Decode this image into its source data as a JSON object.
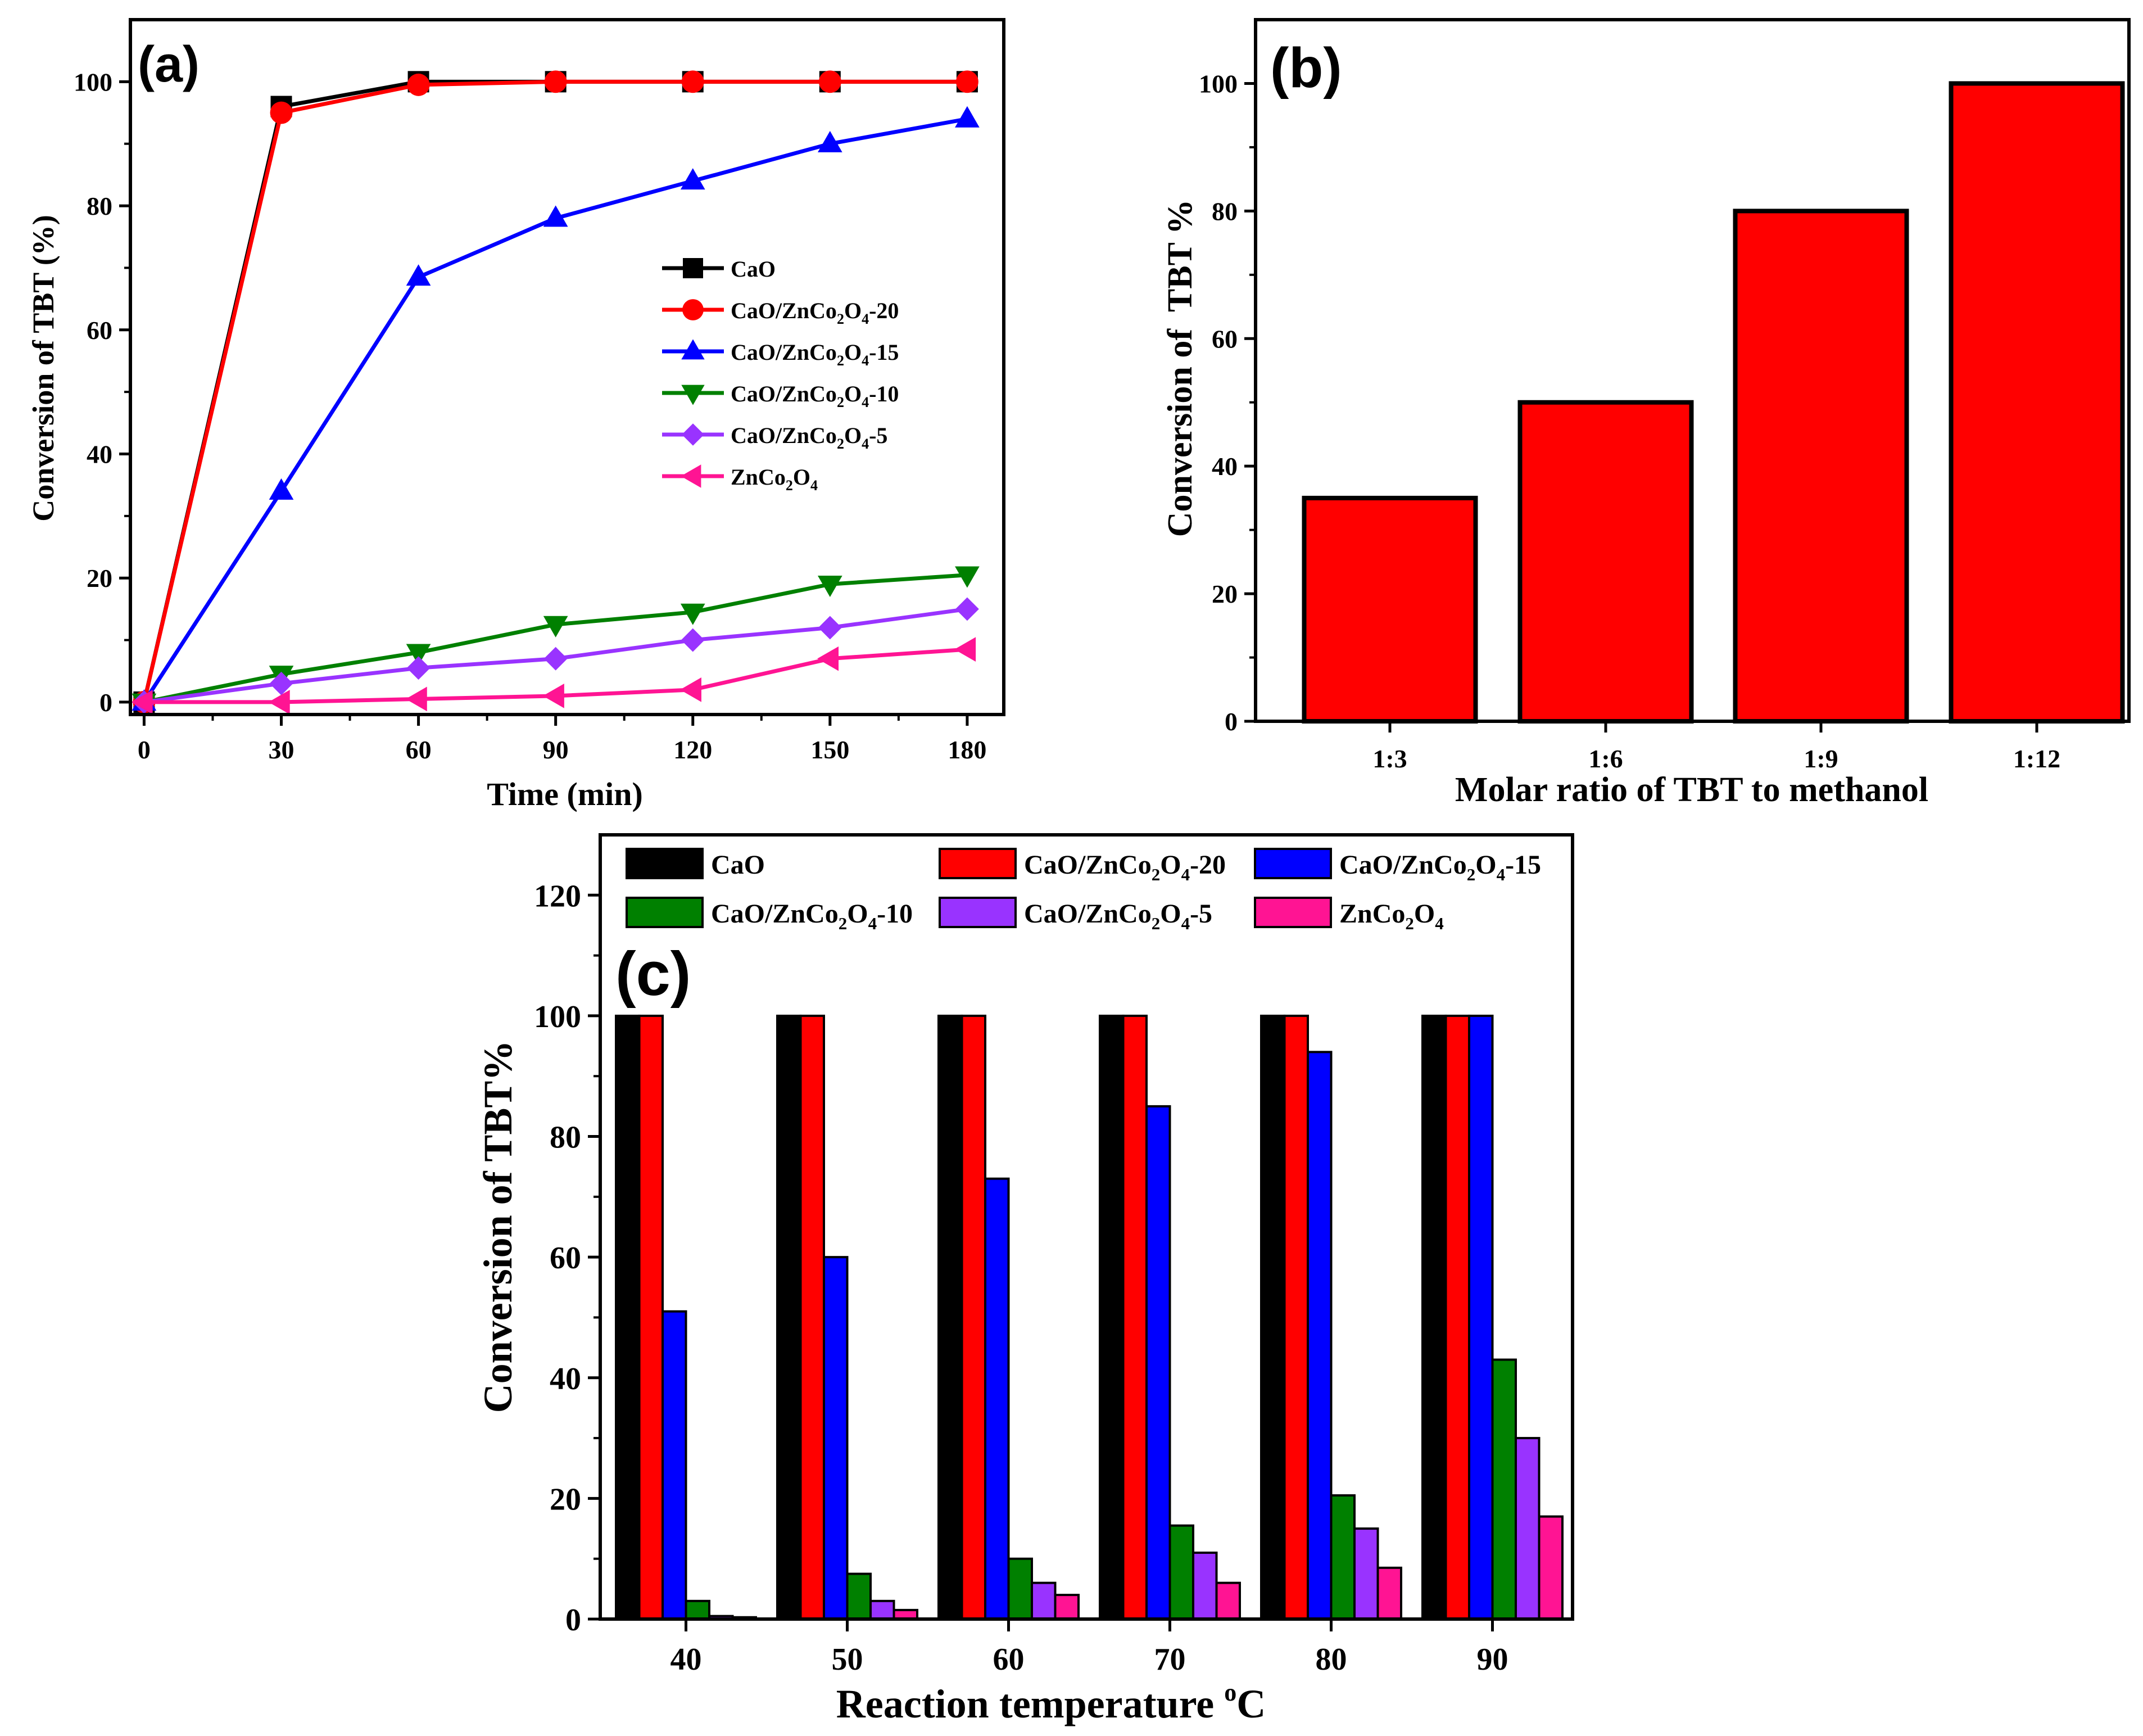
{
  "chart_data": [
    {
      "panel": "(a)",
      "type": "line",
      "xlabel": "Time (min)",
      "ylabel": "Conversion of TBT (%)",
      "xlim": [
        -3,
        188
      ],
      "ylim": [
        -2,
        110
      ],
      "xticks": [
        0,
        30,
        60,
        90,
        120,
        150,
        180
      ],
      "yticks": [
        0,
        20,
        40,
        60,
        80,
        100
      ],
      "x": [
        0,
        30,
        60,
        90,
        120,
        150,
        180
      ],
      "legend_position": "center-right",
      "series": [
        {
          "name": "CaO",
          "label_parts": [
            "CaO"
          ],
          "color": "#000000",
          "marker": "square",
          "values": [
            0,
            96,
            100,
            100,
            100,
            100,
            100
          ]
        },
        {
          "name": "CaO/ZnCo2O4-20",
          "label_parts": [
            "CaO/ZnCo",
            "2",
            "O",
            "4",
            "-20"
          ],
          "color": "#ff0000",
          "marker": "circle",
          "values": [
            0,
            95,
            99.5,
            100,
            100,
            100,
            100
          ]
        },
        {
          "name": "CaO/ZnCo2O4-15",
          "label_parts": [
            "CaO/ZnCo",
            "2",
            "O",
            "4",
            "-15"
          ],
          "color": "#0000ff",
          "marker": "triangle-up",
          "values": [
            0,
            34,
            68.5,
            78,
            84,
            90,
            94
          ]
        },
        {
          "name": "CaO/ZnCo2O4-10",
          "label_parts": [
            "CaO/ZnCo",
            "2",
            "O",
            "4",
            "-10"
          ],
          "color": "#008000",
          "marker": "triangle-down",
          "values": [
            0,
            4.5,
            8,
            12.5,
            14.5,
            19,
            20.5
          ]
        },
        {
          "name": "CaO/ZnCo2O4-5",
          "label_parts": [
            "CaO/ZnCo",
            "2",
            "O",
            "4",
            "-5"
          ],
          "color": "#9933ff",
          "marker": "diamond",
          "values": [
            0,
            3,
            5.5,
            7,
            10,
            12,
            15
          ]
        },
        {
          "name": "ZnCo2O4",
          "label_parts": [
            "ZnCo",
            "2",
            "O",
            "4",
            ""
          ],
          "color": "#ff1493",
          "marker": "triangle-left",
          "values": [
            0,
            0,
            0.5,
            1,
            2,
            7,
            8.5
          ]
        }
      ]
    },
    {
      "panel": "(b)",
      "type": "bar",
      "xlabel": "Molar ratio of TBT to methanol",
      "ylabel": "Conversion of  TBT %",
      "ylim": [
        0,
        110
      ],
      "yticks": [
        0,
        20,
        40,
        60,
        80,
        100
      ],
      "categories": [
        "1:3",
        "1:6",
        "1:9",
        "1:12"
      ],
      "values": [
        35,
        50,
        80,
        100
      ],
      "color": "#ff0000"
    },
    {
      "panel": "(c)",
      "type": "bar",
      "xlabel_main": "Reaction temperature ",
      "xlabel_sup": "o",
      "xlabel_end": "C",
      "ylabel": "Conversion of TBT%",
      "ylim": [
        0,
        130
      ],
      "yticks": [
        0,
        20,
        40,
        60,
        80,
        100,
        120
      ],
      "categories": [
        "40",
        "50",
        "60",
        "70",
        "80",
        "90"
      ],
      "legend_position": "top",
      "series": [
        {
          "name": "CaO",
          "label_parts": [
            "CaO"
          ],
          "color": "#000000",
          "values": [
            100,
            100,
            100,
            100,
            100,
            100
          ]
        },
        {
          "name": "CaO/ZnCo2O4-20",
          "label_parts": [
            "CaO/ZnCo",
            "2",
            "O",
            "4",
            "-20"
          ],
          "color": "#ff0000",
          "values": [
            100,
            100,
            100,
            100,
            100,
            100
          ]
        },
        {
          "name": "CaO/ZnCo2O4-15",
          "label_parts": [
            "CaO/ZnCo",
            "2",
            "O",
            "4",
            "-15"
          ],
          "color": "#0000ff",
          "values": [
            51,
            60,
            73,
            85,
            94,
            100
          ]
        },
        {
          "name": "CaO/ZnCo2O4-10",
          "label_parts": [
            "CaO/ZnCo",
            "2",
            "O",
            "4",
            "-10"
          ],
          "color": "#008000",
          "values": [
            3,
            7.5,
            10,
            15.5,
            20.5,
            43
          ]
        },
        {
          "name": "CaO/ZnCo2O4-5",
          "label_parts": [
            "CaO/ZnCo",
            "2",
            "O",
            "4",
            "-5"
          ],
          "color": "#9933ff",
          "values": [
            0.5,
            3,
            6,
            11,
            15,
            30
          ]
        },
        {
          "name": "ZnCo2O4",
          "label_parts": [
            "ZnCo",
            "2",
            "O",
            "4",
            ""
          ],
          "color": "#ff1493",
          "values": [
            0.3,
            1.5,
            4,
            6,
            8.5,
            17
          ]
        }
      ]
    }
  ]
}
